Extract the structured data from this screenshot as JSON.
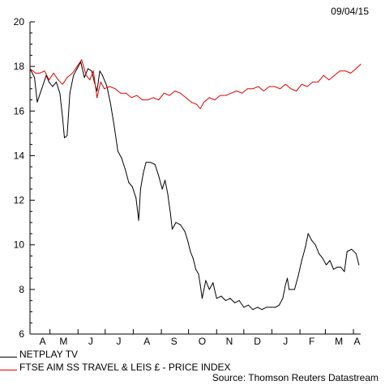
{
  "date": "09/04/15",
  "source": "Source: Thomson Reuters Datastream",
  "chart_data": {
    "type": "line",
    "ylim": [
      6,
      20
    ],
    "y_ticks": [
      6,
      8,
      10,
      12,
      14,
      16,
      18,
      20
    ],
    "x_range": [
      "2014-04-09",
      "2015-04-09"
    ],
    "month_labels": [
      {
        "label": "A",
        "date": "2014-04-23"
      },
      {
        "label": "M",
        "date": "2014-05-16"
      },
      {
        "label": "J",
        "date": "2014-06-15"
      },
      {
        "label": "J",
        "date": "2014-07-16"
      },
      {
        "label": "A",
        "date": "2014-08-16"
      },
      {
        "label": "S",
        "date": "2014-09-15"
      },
      {
        "label": "O",
        "date": "2014-10-16"
      },
      {
        "label": "N",
        "date": "2014-11-15"
      },
      {
        "label": "D",
        "date": "2014-12-16"
      },
      {
        "label": "J",
        "date": "2015-01-16"
      },
      {
        "label": "F",
        "date": "2015-02-14"
      },
      {
        "label": "M",
        "date": "2015-03-16"
      },
      {
        "label": "A",
        "date": "2015-04-05"
      }
    ],
    "series": [
      {
        "name": "NETPLAY TV",
        "color": "#000000",
        "points": [
          [
            "2014-04-09",
            17.9
          ],
          [
            "2014-04-14",
            17.5
          ],
          [
            "2014-04-17",
            16.4
          ],
          [
            "2014-04-22",
            17.0
          ],
          [
            "2014-04-27",
            17.6
          ],
          [
            "2014-04-30",
            17.3
          ],
          [
            "2014-05-04",
            17.1
          ],
          [
            "2014-05-08",
            17.3
          ],
          [
            "2014-05-12",
            16.8
          ],
          [
            "2014-05-15",
            15.7
          ],
          [
            "2014-05-17",
            14.8
          ],
          [
            "2014-05-20",
            14.9
          ],
          [
            "2014-05-23",
            16.8
          ],
          [
            "2014-05-27",
            17.6
          ],
          [
            "2014-05-31",
            17.9
          ],
          [
            "2014-06-04",
            18.2
          ],
          [
            "2014-06-08",
            17.5
          ],
          [
            "2014-06-12",
            17.9
          ],
          [
            "2014-06-16",
            17.8
          ],
          [
            "2014-06-19",
            17.3
          ],
          [
            "2014-06-22",
            16.9
          ],
          [
            "2014-06-25",
            17.8
          ],
          [
            "2014-06-28",
            17.6
          ],
          [
            "2014-07-03",
            17.1
          ],
          [
            "2014-07-07",
            16.3
          ],
          [
            "2014-07-11",
            15.3
          ],
          [
            "2014-07-15",
            14.2
          ],
          [
            "2014-07-19",
            13.9
          ],
          [
            "2014-07-23",
            13.4
          ],
          [
            "2014-07-27",
            12.8
          ],
          [
            "2014-07-31",
            12.6
          ],
          [
            "2014-08-04",
            12.1
          ],
          [
            "2014-08-07",
            11.1
          ],
          [
            "2014-08-09",
            12.5
          ],
          [
            "2014-08-12",
            13.2
          ],
          [
            "2014-08-15",
            13.7
          ],
          [
            "2014-08-20",
            13.7
          ],
          [
            "2014-08-25",
            13.6
          ],
          [
            "2014-08-29",
            13.1
          ],
          [
            "2014-09-02",
            12.5
          ],
          [
            "2014-09-05",
            12.9
          ],
          [
            "2014-09-08",
            12.3
          ],
          [
            "2014-09-11",
            11.4
          ],
          [
            "2014-09-13",
            10.7
          ],
          [
            "2014-09-17",
            11.0
          ],
          [
            "2014-09-22",
            10.9
          ],
          [
            "2014-09-27",
            10.6
          ],
          [
            "2014-09-30",
            10.2
          ],
          [
            "2014-10-03",
            9.7
          ],
          [
            "2014-10-06",
            9.4
          ],
          [
            "2014-10-09",
            8.9
          ],
          [
            "2014-10-12",
            8.7
          ],
          [
            "2014-10-14",
            8.2
          ],
          [
            "2014-10-16",
            7.6
          ],
          [
            "2014-10-18",
            8.0
          ],
          [
            "2014-10-20",
            8.4
          ],
          [
            "2014-10-24",
            8.0
          ],
          [
            "2014-10-28",
            8.3
          ],
          [
            "2014-11-01",
            7.6
          ],
          [
            "2014-11-06",
            7.7
          ],
          [
            "2014-11-11",
            7.5
          ],
          [
            "2014-11-16",
            7.6
          ],
          [
            "2014-11-21",
            7.4
          ],
          [
            "2014-11-26",
            7.5
          ],
          [
            "2014-12-01",
            7.2
          ],
          [
            "2014-12-06",
            7.3
          ],
          [
            "2014-12-11",
            7.1
          ],
          [
            "2014-12-16",
            7.2
          ],
          [
            "2014-12-21",
            7.1
          ],
          [
            "2014-12-26",
            7.2
          ],
          [
            "2014-12-31",
            7.2
          ],
          [
            "2015-01-05",
            7.2
          ],
          [
            "2015-01-09",
            7.3
          ],
          [
            "2015-01-13",
            7.6
          ],
          [
            "2015-01-16",
            8.2
          ],
          [
            "2015-01-18",
            8.5
          ],
          [
            "2015-01-20",
            8.0
          ],
          [
            "2015-01-26",
            8.0
          ],
          [
            "2015-01-30",
            8.6
          ],
          [
            "2015-02-03",
            9.3
          ],
          [
            "2015-02-07",
            9.9
          ],
          [
            "2015-02-10",
            10.5
          ],
          [
            "2015-02-14",
            10.2
          ],
          [
            "2015-02-18",
            10.0
          ],
          [
            "2015-02-22",
            9.6
          ],
          [
            "2015-02-26",
            9.4
          ],
          [
            "2015-03-02",
            9.1
          ],
          [
            "2015-03-06",
            9.3
          ],
          [
            "2015-03-10",
            8.9
          ],
          [
            "2015-03-14",
            9.0
          ],
          [
            "2015-03-18",
            9.0
          ],
          [
            "2015-03-22",
            8.8
          ],
          [
            "2015-03-25",
            9.7
          ],
          [
            "2015-03-30",
            9.8
          ],
          [
            "2015-04-04",
            9.6
          ],
          [
            "2015-04-07",
            9.1
          ]
        ]
      },
      {
        "name": "FTSE AIM SS TRAVEL & LEIS £ - PRICE INDEX",
        "color": "#e00000",
        "points": [
          [
            "2014-04-09",
            17.9
          ],
          [
            "2014-04-15",
            17.7
          ],
          [
            "2014-04-20",
            17.7
          ],
          [
            "2014-04-25",
            17.8
          ],
          [
            "2014-04-30",
            17.4
          ],
          [
            "2014-05-05",
            17.7
          ],
          [
            "2014-05-10",
            17.4
          ],
          [
            "2014-05-15",
            17.2
          ],
          [
            "2014-05-20",
            17.5
          ],
          [
            "2014-05-26",
            17.7
          ],
          [
            "2014-05-31",
            18.0
          ],
          [
            "2014-06-05",
            18.3
          ],
          [
            "2014-06-10",
            17.6
          ],
          [
            "2014-06-14",
            17.4
          ],
          [
            "2014-06-18",
            17.8
          ],
          [
            "2014-06-22",
            16.6
          ],
          [
            "2014-06-26",
            17.3
          ],
          [
            "2014-06-30",
            17.0
          ],
          [
            "2014-07-06",
            17.1
          ],
          [
            "2014-07-12",
            17.0
          ],
          [
            "2014-07-18",
            16.8
          ],
          [
            "2014-07-24",
            16.8
          ],
          [
            "2014-07-30",
            16.6
          ],
          [
            "2014-08-05",
            16.7
          ],
          [
            "2014-08-11",
            16.5
          ],
          [
            "2014-08-17",
            16.5
          ],
          [
            "2014-08-23",
            16.6
          ],
          [
            "2014-08-29",
            16.5
          ],
          [
            "2014-09-04",
            16.8
          ],
          [
            "2014-09-10",
            16.7
          ],
          [
            "2014-09-16",
            16.9
          ],
          [
            "2014-09-22",
            16.8
          ],
          [
            "2014-09-28",
            16.6
          ],
          [
            "2014-10-04",
            16.4
          ],
          [
            "2014-10-10",
            16.3
          ],
          [
            "2014-10-14",
            16.1
          ],
          [
            "2014-10-18",
            16.4
          ],
          [
            "2014-10-24",
            16.6
          ],
          [
            "2014-10-30",
            16.5
          ],
          [
            "2014-11-05",
            16.7
          ],
          [
            "2014-11-11",
            16.7
          ],
          [
            "2014-11-17",
            16.8
          ],
          [
            "2014-11-23",
            16.9
          ],
          [
            "2014-11-29",
            16.8
          ],
          [
            "2014-12-05",
            17.0
          ],
          [
            "2014-12-11",
            17.0
          ],
          [
            "2014-12-17",
            17.1
          ],
          [
            "2014-12-23",
            16.9
          ],
          [
            "2014-12-29",
            17.1
          ],
          [
            "2015-01-04",
            17.1
          ],
          [
            "2015-01-10",
            17.0
          ],
          [
            "2015-01-16",
            17.2
          ],
          [
            "2015-01-22",
            17.0
          ],
          [
            "2015-01-28",
            16.9
          ],
          [
            "2015-02-03",
            17.2
          ],
          [
            "2015-02-09",
            17.1
          ],
          [
            "2015-02-15",
            17.3
          ],
          [
            "2015-02-21",
            17.3
          ],
          [
            "2015-02-27",
            17.6
          ],
          [
            "2015-03-05",
            17.4
          ],
          [
            "2015-03-11",
            17.6
          ],
          [
            "2015-03-17",
            17.8
          ],
          [
            "2015-03-23",
            17.8
          ],
          [
            "2015-03-29",
            17.7
          ],
          [
            "2015-04-04",
            17.9
          ],
          [
            "2015-04-09",
            18.1
          ]
        ]
      }
    ]
  }
}
